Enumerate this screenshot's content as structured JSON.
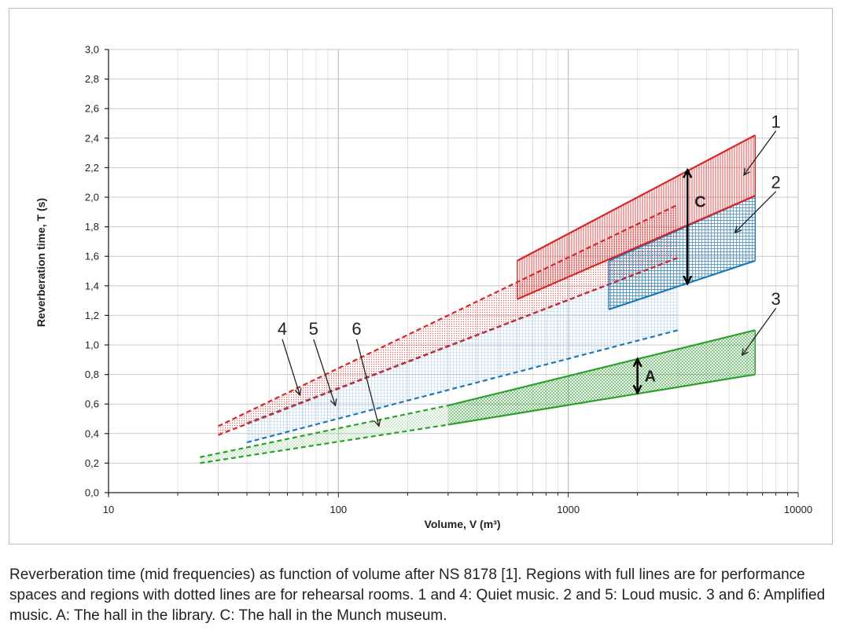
{
  "chart_data": {
    "type": "line",
    "xscale": "log",
    "xlim": [
      10,
      10000
    ],
    "ylim": [
      0,
      3.0
    ],
    "grid": true,
    "xlabel": "Volume, V (m³)",
    "ylabel": "Reverberation time, T (s)",
    "x_ticks": [
      "10",
      "100",
      "1000",
      "10000"
    ],
    "y_ticks": [
      "0,0",
      "0,2",
      "0,4",
      "0,6",
      "0,8",
      "1,0",
      "1,2",
      "1,4",
      "1,6",
      "1,8",
      "2,0",
      "2,2",
      "2,4",
      "2,6",
      "2,8",
      "3,0"
    ],
    "regions": [
      {
        "id": "1",
        "label": "1",
        "style": "solid",
        "color": "#d62728",
        "x": [
          600,
          6500
        ],
        "upper": [
          1.57,
          2.42
        ],
        "lower": [
          1.31,
          2.01
        ]
      },
      {
        "id": "2",
        "label": "2",
        "style": "solid",
        "color": "#1f77b4",
        "x": [
          1500,
          6500
        ],
        "upper": [
          1.57,
          2.01
        ],
        "lower": [
          1.24,
          1.57
        ]
      },
      {
        "id": "3",
        "label": "3",
        "style": "solid",
        "color": "#2ca02c",
        "x": [
          300,
          6500
        ],
        "upper": [
          0.59,
          1.1
        ],
        "lower": [
          0.46,
          0.8
        ]
      },
      {
        "id": "4",
        "label": "4",
        "style": "dotted",
        "color": "#d62728",
        "x": [
          30,
          3000
        ],
        "upper": [
          0.45,
          1.95
        ],
        "lower": [
          0.39,
          1.59
        ]
      },
      {
        "id": "5",
        "label": "5",
        "style": "dotted",
        "color": "#1f77b4",
        "x": [
          40,
          3000
        ],
        "upper": [
          0.47,
          1.59
        ],
        "lower": [
          0.34,
          1.1
        ]
      },
      {
        "id": "6",
        "label": "6",
        "style": "dotted",
        "color": "#2ca02c",
        "x": [
          25,
          300
        ],
        "upper": [
          0.24,
          0.59
        ],
        "lower": [
          0.2,
          0.46
        ]
      }
    ],
    "markers": [
      {
        "label": "A",
        "x": 2000,
        "y": [
          0.67,
          0.91
        ]
      },
      {
        "label": "C",
        "x": 3300,
        "y": [
          1.41,
          2.19
        ]
      }
    ],
    "callouts": [
      {
        "label": "1",
        "target": [
          5800,
          2.15
        ],
        "text_at": [
          8000,
          2.47
        ]
      },
      {
        "label": "2",
        "target": [
          5300,
          1.76
        ],
        "text_at": [
          8000,
          2.06
        ]
      },
      {
        "label": "3",
        "target": [
          5700,
          0.93
        ],
        "text_at": [
          8000,
          1.27
        ]
      },
      {
        "label": "4",
        "target": [
          68,
          0.66
        ],
        "text_at": [
          57,
          1.07
        ]
      },
      {
        "label": "5",
        "target": [
          97,
          0.59
        ],
        "text_at": [
          78,
          1.07
        ]
      },
      {
        "label": "6",
        "target": [
          150,
          0.45
        ],
        "text_at": [
          120,
          1.07
        ]
      }
    ],
    "colors": {
      "red": "#d62728",
      "blue": "#1f77b4",
      "green": "#2ca02c",
      "grid": "#cccccc"
    }
  },
  "caption": "Reverberation time (mid frequencies) as function of volume after NS 8178 [1]. Regions with full lines are for performance spaces and regions with dotted lines are for rehearsal rooms. 1 and 4: Quiet music. 2 and 5: Loud music. 3 and 6: Amplified music. A: The hall in the library. C: The hall in the Munch museum."
}
